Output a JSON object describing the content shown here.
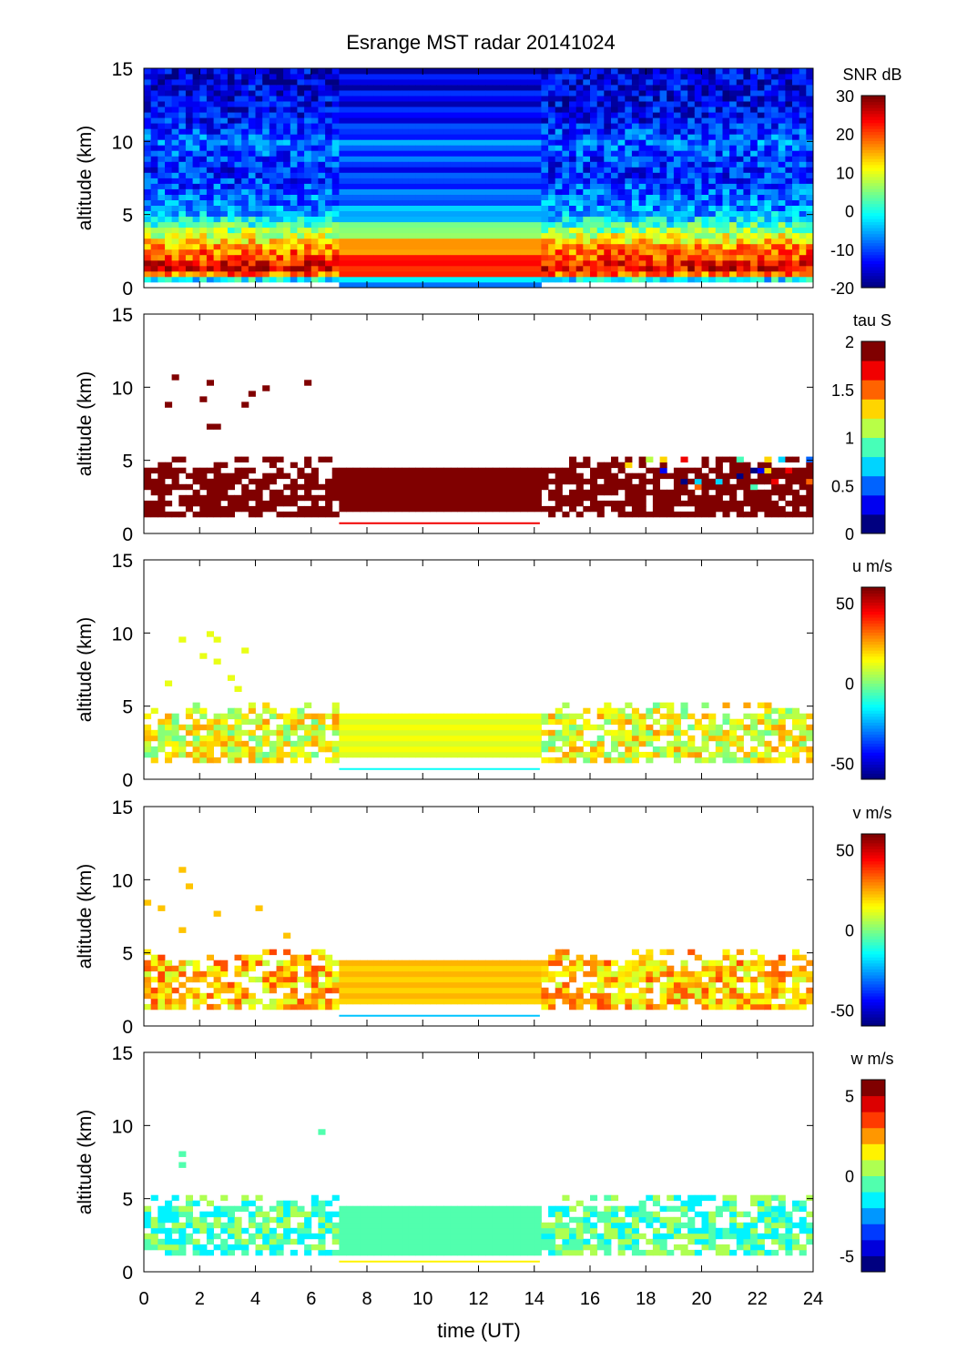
{
  "chart_data": [
    {
      "type": "heatmap",
      "title": "Esrange MST radar 20141024",
      "ylabel": "altitude (km)",
      "colorbar_label": "SNR dB",
      "clim": [
        -20,
        30
      ],
      "colorbar_ticks": [
        "30",
        "20",
        "10",
        "0",
        "-10",
        "-20"
      ],
      "colorbar_tick_values": [
        30,
        20,
        10,
        0,
        -10,
        -20
      ],
      "levels": 64,
      "yticks": [
        "15",
        "10",
        "5",
        "0"
      ],
      "ylim": [
        0,
        15
      ],
      "xlim": [
        0,
        24
      ],
      "segments": [
        {
          "t": [
            0,
            7
          ],
          "mode": "noisy",
          "fill": 1
        },
        {
          "t": [
            7,
            14.2
          ],
          "mode": "stripes",
          "fill": 1
        },
        {
          "t": [
            14.2,
            24
          ],
          "mode": "noisy",
          "fill": 1
        }
      ],
      "profile_alt_km": [
        0.5,
        1,
        1.5,
        2,
        2.5,
        3,
        3.5,
        4,
        4.5,
        5,
        6,
        7,
        8,
        9,
        10,
        11,
        12,
        13,
        14,
        15
      ],
      "profile_values": [
        -5,
        22,
        25,
        20,
        18,
        15,
        10,
        5,
        0,
        -5,
        -8,
        -10,
        -12,
        -10,
        -8,
        -12,
        -14,
        -14,
        -15,
        -15
      ]
    },
    {
      "type": "heatmap",
      "ylabel": "altitude (km)",
      "colorbar_label": "tau S",
      "clim": [
        0,
        2
      ],
      "colorbar_ticks": [
        "2",
        "1.5",
        "1",
        "0.5",
        "0"
      ],
      "colorbar_tick_values": [
        2,
        1.5,
        1,
        0.5,
        0
      ],
      "levels": 10,
      "yticks": [
        "15",
        "10",
        "5",
        "0"
      ],
      "ylim": [
        0,
        15
      ],
      "xlim": [
        0,
        24
      ],
      "echo_layer_km": [
        1.5,
        4.5
      ],
      "layer_value": 2,
      "line_alt_km": 0.7,
      "line_value": 1.6,
      "line_t": [
        7,
        14.2
      ]
    },
    {
      "type": "heatmap",
      "ylabel": "altitude (km)",
      "colorbar_label": "u m/s",
      "clim": [
        -60,
        60
      ],
      "colorbar_ticks": [
        "50",
        "0",
        "-50"
      ],
      "colorbar_tick_values": [
        50,
        0,
        -50
      ],
      "levels": 64,
      "yticks": [
        "15",
        "10",
        "5",
        "0"
      ],
      "ylim": [
        0,
        15
      ],
      "xlim": [
        0,
        24
      ],
      "echo_layer_km": [
        1.5,
        4.5
      ],
      "layer_value": 12,
      "line_alt_km": 0.7,
      "line_value": -15,
      "line_t": [
        7,
        14.2
      ]
    },
    {
      "type": "heatmap",
      "ylabel": "altitude (km)",
      "colorbar_label": "v m/s",
      "clim": [
        -60,
        60
      ],
      "colorbar_ticks": [
        "50",
        "0",
        "-50"
      ],
      "colorbar_tick_values": [
        50,
        0,
        -50
      ],
      "levels": 64,
      "yticks": [
        "15",
        "10",
        "5",
        "0"
      ],
      "ylim": [
        0,
        15
      ],
      "xlim": [
        0,
        24
      ],
      "echo_layer_km": [
        1.5,
        4.5
      ],
      "layer_value": 22,
      "line_alt_km": 0.7,
      "line_value": -22,
      "line_t": [
        7,
        14.2
      ]
    },
    {
      "type": "heatmap",
      "ylabel": "altitude (km)",
      "colorbar_label": "w m/s",
      "clim": [
        -6,
        6
      ],
      "colorbar_ticks": [
        "5",
        "0",
        "-5"
      ],
      "colorbar_tick_values": [
        5,
        0,
        -5
      ],
      "levels": 12,
      "yticks": [
        "15",
        "10",
        "5",
        "0"
      ],
      "ylim": [
        0,
        15
      ],
      "xlim": [
        0,
        24
      ],
      "echo_layer_km": [
        1.2,
        4.5
      ],
      "layer_value": -0.5,
      "line_alt_km": 0.7,
      "line_value": 1,
      "line_t": [
        7,
        14.2
      ]
    }
  ],
  "xaxis": {
    "label": "time (UT)",
    "ticks": [
      "0",
      "2",
      "4",
      "6",
      "8",
      "10",
      "12",
      "14",
      "16",
      "18",
      "20",
      "22",
      "24"
    ]
  }
}
